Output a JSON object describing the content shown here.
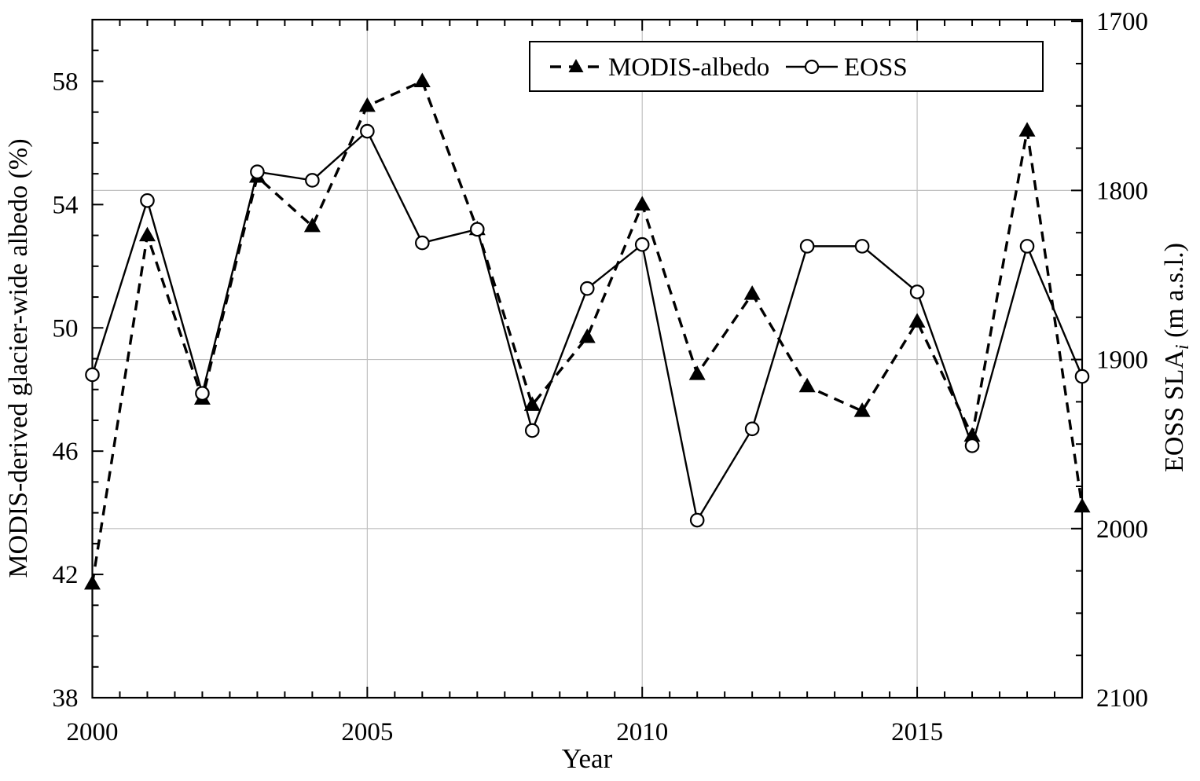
{
  "page": {
    "background": "#ffffff",
    "foreground": "#000000",
    "gridline_color": "#c0c0c0"
  },
  "chart_data": {
    "type": "line",
    "title": "",
    "xlabel": "Year",
    "ylabel_left": "MODIS-derived glacier-wide albedo (%)",
    "ylabel_right_parts": {
      "prefix": "EOSS SLA",
      "subscript": "i",
      "suffix": " (m a.s.l.)"
    },
    "x": [
      2000,
      2001,
      2002,
      2003,
      2004,
      2005,
      2006,
      2007,
      2008,
      2009,
      2010,
      2011,
      2012,
      2013,
      2014,
      2015,
      2016,
      2017,
      2018
    ],
    "series": [
      {
        "name": "MODIS-albedo",
        "axis": "left",
        "line_style": "dashed",
        "marker": "filled-triangle",
        "color": "#000000",
        "values": [
          41.7,
          53.0,
          47.7,
          54.9,
          53.3,
          57.2,
          58.0,
          53.2,
          47.5,
          49.7,
          54.0,
          48.5,
          51.1,
          48.1,
          47.3,
          50.2,
          46.5,
          56.4,
          44.2
        ]
      },
      {
        "name": "EOSS",
        "axis": "right",
        "line_style": "solid",
        "marker": "open-circle",
        "color": "#000000",
        "values": [
          1909,
          1806,
          1920,
          1789,
          1794,
          1765,
          1831,
          1823,
          1942,
          1858,
          1832,
          1995,
          1941,
          1833,
          1833,
          1860,
          1951,
          1833,
          1910
        ]
      }
    ],
    "axes": {
      "x": {
        "min": 2000,
        "max": 2018,
        "major_ticks": [
          2000,
          2005,
          2010,
          2015
        ],
        "minor_step": 0.5
      },
      "left": {
        "min": 38,
        "max": 60,
        "major_ticks": [
          38,
          42,
          46,
          50,
          54,
          58
        ],
        "minor_step": 1
      },
      "right": {
        "top_value": 1699,
        "bottom_value": 2100,
        "major_ticks": [
          1700,
          1800,
          1900,
          2000,
          2100
        ],
        "minor_step": 25,
        "inverted": true
      }
    },
    "gridlines": {
      "vertical_x": [
        2005,
        2010,
        2015
      ],
      "horizontal_right_values": [
        1800,
        1900,
        2000
      ],
      "color": "#c0c0c0"
    },
    "legend": {
      "position": "top-center",
      "items": [
        "MODIS-albedo",
        "EOSS"
      ]
    }
  }
}
